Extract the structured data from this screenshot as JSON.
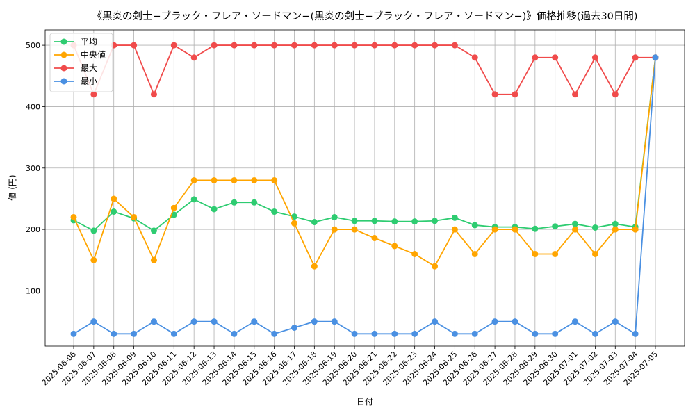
{
  "chart_data": {
    "type": "line",
    "title": "《黒炎の剣士−ブラック・フレア・ソードマン−(黒炎の剣士−ブラック・フレア・ソードマン−)》価格推移(過去30日間)",
    "xlabel": "日付",
    "ylabel": "値 (円)",
    "grid": true,
    "legend_position": "top-left",
    "ylim": [
      10,
      525
    ],
    "yticks": [
      100,
      200,
      300,
      400,
      500
    ],
    "x": [
      "2025-06-06",
      "2025-06-07",
      "2025-06-08",
      "2025-06-09",
      "2025-06-10",
      "2025-06-11",
      "2025-06-12",
      "2025-06-13",
      "2025-06-14",
      "2025-06-15",
      "2025-06-16",
      "2025-06-17",
      "2025-06-18",
      "2025-06-19",
      "2025-06-20",
      "2025-06-21",
      "2025-06-22",
      "2025-06-23",
      "2025-06-24",
      "2025-06-25",
      "2025-06-26",
      "2025-06-27",
      "2025-06-28",
      "2025-06-29",
      "2025-06-30",
      "2025-07-01",
      "2025-07-02",
      "2025-07-03",
      "2025-07-04",
      "2025-07-05"
    ],
    "series": [
      {
        "name": "平均",
        "color": "#2ecc71",
        "values": [
          215,
          198,
          229,
          218,
          198,
          224,
          249,
          233,
          244,
          244,
          229,
          221,
          212,
          220,
          214,
          214,
          213,
          213,
          214,
          219,
          207,
          204,
          204,
          201,
          205,
          209,
          203,
          209,
          204,
          480
        ]
      },
      {
        "name": "中央値",
        "color": "#ffa500",
        "values": [
          220,
          150,
          250,
          220,
          150,
          235,
          280,
          280,
          280,
          280,
          280,
          210,
          140,
          200,
          200,
          186,
          173,
          160,
          140,
          200,
          160,
          200,
          200,
          160,
          160,
          200,
          160,
          200,
          200,
          480
        ]
      },
      {
        "name": "最大",
        "color": "#f04b4b",
        "values": [
          500,
          420,
          500,
          500,
          420,
          500,
          480,
          500,
          500,
          500,
          500,
          500,
          500,
          500,
          500,
          500,
          500,
          500,
          500,
          500,
          480,
          420,
          420,
          480,
          480,
          420,
          480,
          420,
          480,
          480
        ]
      },
      {
        "name": "最小",
        "color": "#4a90e2",
        "values": [
          30,
          50,
          30,
          30,
          50,
          30,
          50,
          50,
          30,
          50,
          30,
          40,
          50,
          50,
          30,
          30,
          30,
          30,
          50,
          30,
          30,
          50,
          50,
          30,
          30,
          50,
          30,
          50,
          30,
          480
        ]
      }
    ]
  }
}
